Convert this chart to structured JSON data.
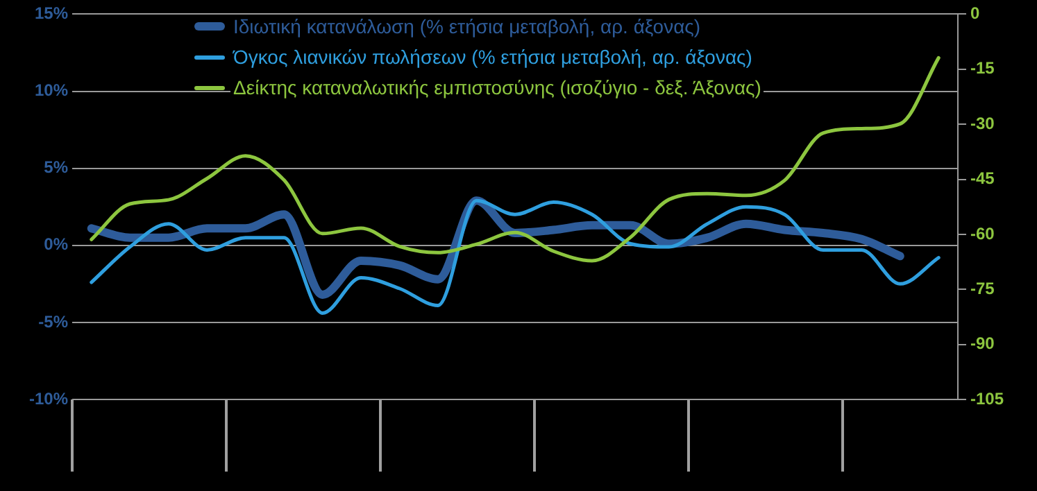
{
  "chart_data": {
    "type": "line",
    "categories": [
      null,
      null,
      null,
      null,
      null,
      null,
      null,
      null,
      null,
      null,
      null,
      null,
      null,
      null,
      null,
      null,
      null,
      null,
      null,
      null,
      null,
      null,
      null
    ],
    "series": [
      {
        "name": "Ιδιωτική κατανάλωση (% ετήσια μεταβολή, αρ. άξονας)",
        "color": "#2e5c9a",
        "values": [
          1.1,
          0.5,
          0.5,
          1.1,
          1.1,
          2.0,
          -3.2,
          -1.0,
          -1.3,
          -2.2,
          2.9,
          0.8,
          1.0,
          1.3,
          1.3,
          0.1,
          0.5,
          1.4,
          1.0,
          0.8,
          0.4,
          -0.7,
          null
        ]
      },
      {
        "name": "Όγκος λιανικών πωλήσεων (% ετήσια μεταβολή, αρ. άξονας)",
        "color": "#2f9fdf",
        "values": [
          -2.4,
          -0.1,
          1.4,
          -0.3,
          0.5,
          0.5,
          -4.4,
          -2.1,
          -2.8,
          -3.9,
          2.9,
          2.0,
          2.8,
          2.0,
          0.1,
          -0.1,
          1.4,
          2.5,
          2.0,
          -0.3,
          -0.3,
          -2.5,
          -0.8
        ]
      },
      {
        "name": "Δείκτης καταναλωτικής εμπιστοσύνης (ισοζύγιο - δεξ. Άξονας)",
        "color": "#8dc63f",
        "axis": "y2",
        "values": [
          -61.4,
          -51.7,
          -50.6,
          -44.8,
          -38.6,
          -45.2,
          -59.8,
          -58.3,
          -63.3,
          -65,
          -62.7,
          -59.5,
          -64.6,
          -67.2,
          -60.8,
          -50.5,
          -48.9,
          -49.4,
          -45.3,
          -32.4,
          -31.2,
          -29.9,
          -11.9
        ]
      }
    ],
    "ylim": [
      -10,
      15
    ],
    "yticks": [
      {
        "value": -10,
        "label": "-10%"
      },
      {
        "value": -5,
        "label": "-5%"
      },
      {
        "value": 0,
        "label": "0%"
      },
      {
        "value": 5,
        "label": "5%"
      },
      {
        "value": 10,
        "label": "10%"
      },
      {
        "value": 15,
        "label": "15%"
      }
    ],
    "y2lim": [
      -105,
      0
    ],
    "y2ticks": [
      -105,
      -90,
      -75,
      -60,
      -45,
      -30,
      -15,
      0
    ],
    "grid": "y",
    "legend": "top"
  }
}
